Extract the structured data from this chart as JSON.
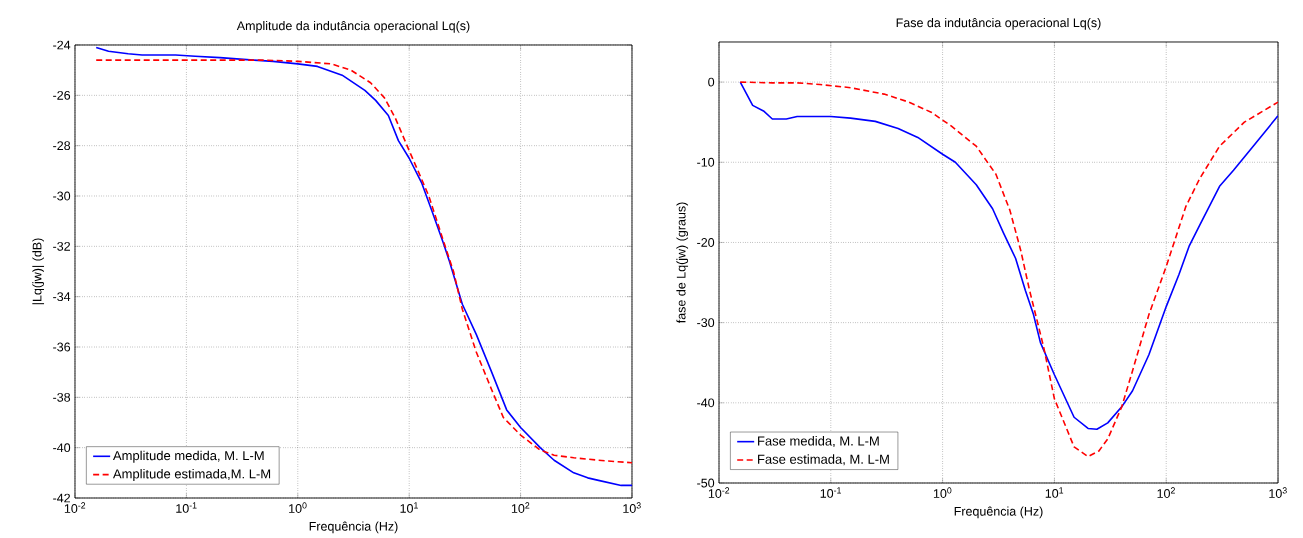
{
  "chart_data": [
    {
      "type": "line",
      "title": "Amplitude da indutância operacional Lq(s)",
      "xlabel": "Frequência (Hz)",
      "ylabel": "|Lq(jw)| (dB)",
      "log": "x",
      "grid": true,
      "legend": "bottom left",
      "xlim": [
        0.01,
        1000
      ],
      "ylim": [
        -42,
        -24
      ],
      "xticks": [
        {
          "value": 0.01,
          "label": "10$^{-2}$"
        },
        {
          "value": 0.1,
          "label": "10$^{-1}$"
        },
        {
          "value": 1,
          "label": "10$^{0}$"
        },
        {
          "value": 10,
          "label": "10$^{1}$"
        },
        {
          "value": 100,
          "label": "10$^{2}$"
        },
        {
          "value": 1000,
          "label": "10$^{3}$"
        }
      ],
      "yticks": [
        -42,
        -40,
        -38,
        -36,
        -34,
        -32,
        -30,
        -28,
        -26,
        -24
      ],
      "series": [
        {
          "name": "Amplitude medida, M. L-M",
          "color": "#0000ff",
          "line_style": "solid",
          "x": [
            0.0155,
            0.02,
            0.03,
            0.04,
            0.08,
            0.12,
            0.2,
            0.4,
            0.6,
            1,
            1.5,
            2.5,
            4,
            5,
            6.5,
            8,
            10,
            13,
            16,
            20,
            23,
            30,
            40,
            55,
            75,
            100,
            150,
            200,
            300,
            400,
            500,
            800,
            1000
          ],
          "values": [
            -24.1,
            -24.25,
            -24.35,
            -24.4,
            -24.4,
            -24.45,
            -24.5,
            -24.6,
            -24.65,
            -24.75,
            -24.85,
            -25.2,
            -25.8,
            -26.2,
            -26.8,
            -27.8,
            -28.5,
            -29.5,
            -30.6,
            -31.8,
            -32.6,
            -34.3,
            -35.5,
            -37,
            -38.5,
            -39.2,
            -40,
            -40.5,
            -41,
            -41.2,
            -41.3,
            -41.5,
            -41.5
          ]
        },
        {
          "name": "Amplitude estimada,M. L-M",
          "color": "#ff0000",
          "line_style": "dashed",
          "x": [
            0.0155,
            0.1,
            0.5,
            1,
            2,
            3,
            4.5,
            6,
            7.5,
            10,
            12,
            15,
            20,
            25,
            30,
            40,
            55,
            70,
            100,
            150,
            200,
            300,
            500,
            1000
          ],
          "values": [
            -24.6,
            -24.6,
            -24.6,
            -24.65,
            -24.75,
            -25,
            -25.5,
            -26.1,
            -26.9,
            -28.2,
            -29,
            -30,
            -31.7,
            -33,
            -34.5,
            -36.2,
            -37.7,
            -38.8,
            -39.5,
            -40.1,
            -40.3,
            -40.4,
            -40.5,
            -40.6
          ]
        }
      ]
    },
    {
      "type": "line",
      "title": "Fase da indutância operacional Lq(s)",
      "xlabel": "Frequência (Hz)",
      "ylabel": "fase de Lq(jw) (graus)",
      "log": "x",
      "grid": true,
      "legend": "bottom left",
      "xlim": [
        0.01,
        1000
      ],
      "ylim": [
        -50,
        5
      ],
      "xticks": [
        {
          "value": 0.01,
          "label": "10$^{-2}$"
        },
        {
          "value": 0.1,
          "label": "10$^{-1}$"
        },
        {
          "value": 1,
          "label": "10$^{0}$"
        },
        {
          "value": 10,
          "label": "10$^{1}$"
        },
        {
          "value": 100,
          "label": "10$^{2}$"
        },
        {
          "value": 1000,
          "label": "10$^{3}$"
        }
      ],
      "yticks": [
        -50,
        -40,
        -30,
        -20,
        -10,
        0
      ],
      "series": [
        {
          "name": "Fase medida, M. L-M",
          "color": "#0000ff",
          "line_style": "solid",
          "x": [
            0.0155,
            0.02,
            0.025,
            0.03,
            0.04,
            0.05,
            0.1,
            0.15,
            0.25,
            0.4,
            0.6,
            1,
            1.3,
            2,
            2.8,
            3.5,
            4.5,
            5.5,
            6.5,
            7.5,
            10,
            15,
            20,
            24,
            30,
            40,
            50,
            70,
            100,
            130,
            160,
            200,
            300,
            400,
            600,
            1000
          ],
          "values": [
            0,
            -2.9,
            -3.6,
            -4.6,
            -4.6,
            -4.3,
            -4.3,
            -4.5,
            -4.9,
            -5.8,
            -6.9,
            -9,
            -10,
            -12.8,
            -15.8,
            -18.8,
            -22,
            -26,
            -29,
            -32.5,
            -36.5,
            -41.8,
            -43.2,
            -43.3,
            -42.5,
            -40.5,
            -38.5,
            -34,
            -28,
            -24,
            -20.5,
            -17.8,
            -13,
            -11,
            -8,
            -4.2
          ]
        },
        {
          "name": "Fase estimada, M. L-M",
          "color": "#ff0000",
          "line_style": "dashed",
          "x": [
            0.0155,
            0.03,
            0.05,
            0.08,
            0.15,
            0.3,
            0.5,
            0.8,
            1.2,
            2,
            3,
            4,
            5,
            6,
            8,
            10,
            15,
            20,
            25,
            30,
            40,
            50,
            70,
            100,
            150,
            200,
            300,
            500,
            1000
          ],
          "values": [
            0,
            -0.1,
            -0.1,
            -0.3,
            -0.7,
            -1.5,
            -2.5,
            -3.8,
            -5.5,
            -8,
            -11.5,
            -16,
            -21,
            -26,
            -33,
            -39.5,
            -45.5,
            -46.7,
            -46,
            -44.5,
            -40.5,
            -36,
            -29,
            -23,
            -15.5,
            -12,
            -8,
            -5,
            -2.5
          ]
        }
      ]
    }
  ]
}
